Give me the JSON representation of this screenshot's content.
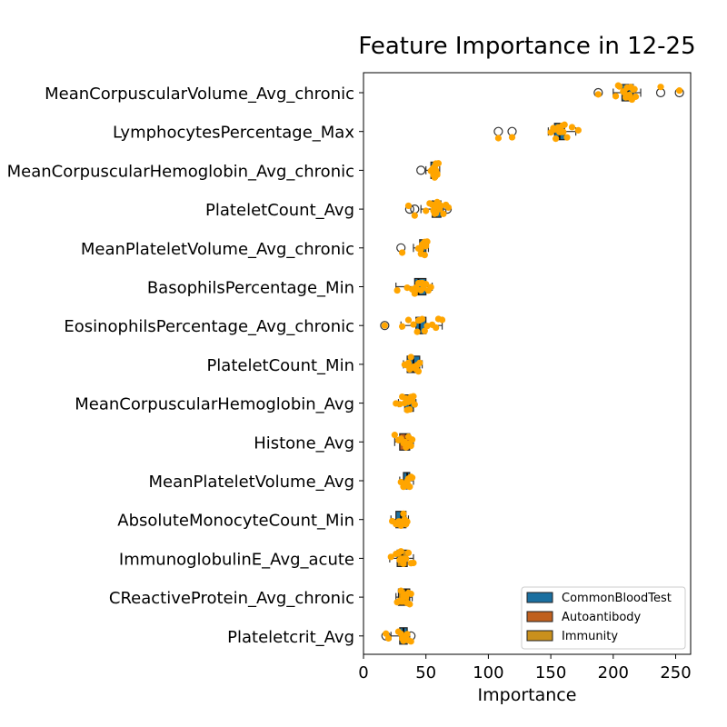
{
  "chart_data": {
    "type": "boxplot-strip",
    "title": "Feature Importance in 12-25",
    "xlabel": "Importance",
    "ylabel": "",
    "xlim": [
      0,
      262
    ],
    "xticks": [
      0,
      50,
      100,
      150,
      200,
      250
    ],
    "orientation": "horizontal",
    "legend": {
      "placement": "bottom-right",
      "entries": [
        {
          "name": "CommonBloodTest",
          "color": "#1a6fa0"
        },
        {
          "name": "Autoantibody",
          "color": "#c0601e"
        },
        {
          "name": "Immunity",
          "color": "#c9901c"
        }
      ]
    },
    "point_color": "#ffa500",
    "features": [
      {
        "name": "MeanCorpuscularVolume_Avg_chronic",
        "group": "CommonBloodTest",
        "q1": 207,
        "median": 212,
        "q3": 216,
        "whisker_low": 200,
        "whisker_high": 222,
        "outliers": [
          188,
          238,
          253
        ],
        "points": [
          202,
          205,
          208,
          210,
          211,
          212,
          214,
          215,
          216,
          218,
          204,
          217,
          213,
          209,
          238,
          253,
          188
        ]
      },
      {
        "name": "LymphocytesPercentage_Max",
        "group": "CommonBloodTest",
        "q1": 153,
        "median": 157,
        "q3": 161,
        "whisker_low": 148,
        "whisker_high": 170,
        "outliers": [
          108,
          119
        ],
        "points": [
          150,
          153,
          155,
          157,
          159,
          161,
          163,
          167,
          172,
          154,
          156,
          160,
          108,
          119,
          152,
          158
        ]
      },
      {
        "name": "MeanCorpuscularHemoglobin_Avg_chronic",
        "group": "CommonBloodTest",
        "q1": 54,
        "median": 57,
        "q3": 59,
        "whisker_low": 50,
        "whisker_high": 61,
        "outliers": [
          46
        ],
        "points": [
          55,
          56,
          57,
          58,
          59,
          60,
          54,
          57,
          58,
          56,
          59,
          57
        ]
      },
      {
        "name": "PlateletCount_Avg",
        "group": "CommonBloodTest",
        "q1": 55,
        "median": 58,
        "q3": 62,
        "whisker_low": 46,
        "whisker_high": 66,
        "outliers": [
          37,
          41,
          67
        ],
        "points": [
          36,
          41,
          50,
          53,
          55,
          57,
          58,
          59,
          60,
          62,
          64,
          66,
          68,
          56,
          61,
          58
        ]
      },
      {
        "name": "MeanPlateletVolume_Avg_chronic",
        "group": "CommonBloodTest",
        "q1": 45,
        "median": 48,
        "q3": 50,
        "whisker_low": 40,
        "whisker_high": 52,
        "outliers": [
          30
        ],
        "points": [
          31,
          44,
          46,
          47,
          48,
          49,
          50,
          51,
          46,
          48,
          49,
          47
        ]
      },
      {
        "name": "BasophilsPercentage_Min",
        "group": "CommonBloodTest",
        "q1": 41,
        "median": 44,
        "q3": 50,
        "whisker_low": 26,
        "whisker_high": 55,
        "outliers": [],
        "points": [
          27,
          35,
          39,
          41,
          43,
          44,
          46,
          48,
          50,
          52,
          54,
          45,
          47,
          42
        ]
      },
      {
        "name": "EosinophilsPercentage_Avg_chronic",
        "group": "CommonBloodTest",
        "q1": 42,
        "median": 45,
        "q3": 50,
        "whisker_low": 30,
        "whisker_high": 63,
        "outliers": [
          17
        ],
        "points": [
          17,
          31,
          36,
          40,
          43,
          45,
          47,
          49,
          51,
          55,
          58,
          60,
          63,
          44
        ]
      },
      {
        "name": "PlateletCount_Min",
        "group": "CommonBloodTest",
        "q1": 35,
        "median": 40,
        "q3": 45,
        "whisker_low": 32,
        "whisker_high": 47,
        "outliers": [],
        "points": [
          33,
          35,
          37,
          38,
          40,
          41,
          42,
          43,
          45,
          39,
          44,
          36
        ]
      },
      {
        "name": "MeanCorpuscularHemoglobin_Avg",
        "group": "CommonBloodTest",
        "q1": 33,
        "median": 37,
        "q3": 40,
        "whisker_low": 28,
        "whisker_high": 42,
        "outliers": [],
        "points": [
          26,
          29,
          31,
          33,
          35,
          36,
          37,
          38,
          39,
          40,
          41,
          34
        ]
      },
      {
        "name": "Histone_Avg",
        "group": "Autoantibody",
        "q1": 29,
        "median": 34,
        "q3": 37,
        "whisker_low": 25,
        "whisker_high": 40,
        "outliers": [],
        "points": [
          25,
          28,
          30,
          32,
          34,
          35,
          36,
          37,
          38,
          39,
          33
        ]
      },
      {
        "name": "MeanPlateletVolume_Avg",
        "group": "CommonBloodTest",
        "q1": 32,
        "median": 35,
        "q3": 37,
        "whisker_low": 29,
        "whisker_high": 40,
        "outliers": [],
        "points": [
          30,
          32,
          33,
          34,
          35,
          36,
          37,
          38,
          39,
          34,
          36
        ]
      },
      {
        "name": "AbsoluteMonocyteCount_Min",
        "group": "CommonBloodTest",
        "q1": 26,
        "median": 30,
        "q3": 34,
        "whisker_low": 22,
        "whisker_high": 36,
        "outliers": [],
        "points": [
          23,
          26,
          28,
          29,
          30,
          31,
          32,
          33,
          34,
          35,
          27
        ]
      },
      {
        "name": "ImmunoglobulinE_Avg_acute",
        "group": "Immunity",
        "q1": 27,
        "median": 31,
        "q3": 35,
        "whisker_low": 21,
        "whisker_high": 40,
        "outliers": [],
        "points": [
          22,
          26,
          28,
          30,
          31,
          32,
          34,
          36,
          38,
          40,
          29,
          33
        ]
      },
      {
        "name": "CReactiveProtein_Avg_chronic",
        "group": "Immunity",
        "q1": 28,
        "median": 34,
        "q3": 37,
        "whisker_low": 26,
        "whisker_high": 39,
        "outliers": [],
        "points": [
          27,
          29,
          30,
          32,
          33,
          34,
          35,
          36,
          37,
          38,
          31
        ]
      },
      {
        "name": "Plateletcrit_Avg",
        "group": "CommonBloodTest",
        "q1": 29,
        "median": 32,
        "q3": 35,
        "whisker_low": 22,
        "whisker_high": 37,
        "outliers": [
          18,
          38
        ],
        "points": [
          18,
          20,
          28,
          30,
          31,
          32,
          33,
          34,
          35,
          36,
          38,
          32
        ]
      }
    ]
  }
}
